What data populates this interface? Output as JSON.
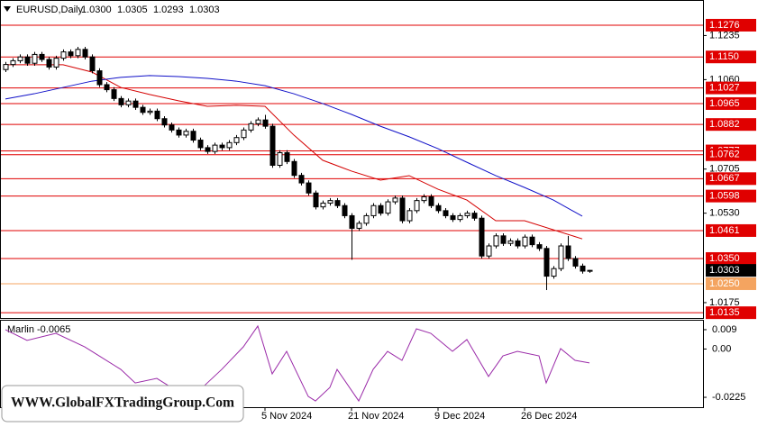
{
  "header": {
    "symbol": "EURUSD,Daily",
    "quote": [
      "1.0300",
      "1.0305",
      "1.0293",
      "1.0303"
    ]
  },
  "watermark": "WWW.GlobalFXTradingGroup.Com",
  "chart_data": [
    {
      "type": "candlestick",
      "categories": [
        null,
        null,
        null,
        null,
        null,
        null,
        null,
        null,
        null,
        null,
        null,
        null,
        null,
        null,
        null,
        null,
        null,
        null,
        null,
        null,
        null,
        null,
        null,
        null,
        null,
        null,
        null,
        null,
        null,
        null,
        null,
        null,
        null,
        null,
        null,
        null,
        "5 Nov 2024",
        null,
        null,
        null,
        null,
        null,
        null,
        null,
        null,
        null,
        null,
        null,
        "21 Nov 2024",
        null,
        null,
        null,
        null,
        null,
        null,
        null,
        null,
        null,
        null,
        null,
        "9 Dec 2024",
        null,
        null,
        null,
        null,
        null,
        null,
        null,
        null,
        null,
        null,
        null,
        "26 Dec 2024",
        null,
        null,
        null,
        null,
        null,
        null,
        null,
        null,
        null
      ],
      "open": [
        1.11,
        1.112,
        1.1135,
        1.115,
        1.1125,
        1.116,
        1.114,
        1.111,
        1.1145,
        1.117,
        1.1155,
        1.118,
        1.115,
        1.1095,
        1.104,
        1.102,
        1.0985,
        1.096,
        1.0975,
        1.095,
        1.093,
        1.0935,
        1.0905,
        1.088,
        1.086,
        1.084,
        1.0855,
        1.082,
        1.079,
        1.0775,
        1.08,
        1.079,
        1.081,
        1.083,
        1.086,
        1.0885,
        1.09,
        1.0875,
        1.072,
        1.077,
        1.0735,
        1.068,
        1.065,
        1.061,
        1.0555,
        1.057,
        1.058,
        1.056,
        1.052,
        1.047,
        1.049,
        1.052,
        1.056,
        1.053,
        1.0575,
        1.059,
        1.05,
        1.054,
        1.058,
        1.0595,
        1.056,
        1.054,
        1.052,
        1.0505,
        1.052,
        1.053,
        1.051,
        1.036,
        1.04,
        1.044,
        1.041,
        1.042,
        1.04,
        1.0435,
        1.0405,
        1.039,
        1.028,
        1.031,
        1.04,
        1.035,
        1.032,
        1.03
      ],
      "high": [
        1.113,
        1.1145,
        1.116,
        1.116,
        1.117,
        1.117,
        1.115,
        1.1155,
        1.118,
        1.118,
        1.119,
        1.119,
        1.116,
        1.1105,
        1.105,
        1.103,
        1.0995,
        1.0985,
        1.0985,
        1.096,
        1.0945,
        1.0945,
        1.0915,
        1.089,
        1.087,
        1.0865,
        1.0865,
        1.083,
        1.08,
        1.081,
        1.081,
        1.082,
        1.084,
        1.087,
        1.0895,
        1.091,
        1.092,
        1.0885,
        1.078,
        1.078,
        1.0745,
        1.069,
        1.066,
        1.062,
        1.058,
        1.059,
        1.059,
        1.057,
        1.053,
        1.05,
        1.053,
        1.057,
        1.057,
        1.0585,
        1.06,
        1.06,
        1.055,
        1.059,
        1.0605,
        1.0605,
        1.057,
        1.055,
        1.053,
        1.053,
        1.054,
        1.054,
        1.052,
        1.041,
        1.045,
        1.045,
        1.043,
        1.043,
        1.0445,
        1.0445,
        1.0415,
        1.04,
        1.032,
        1.041,
        1.044,
        1.036,
        1.033,
        1.0305
      ],
      "low": [
        1.109,
        1.111,
        1.1125,
        1.1115,
        1.1115,
        1.113,
        1.11,
        1.11,
        1.1135,
        1.1145,
        1.1145,
        1.114,
        1.1085,
        1.103,
        1.101,
        1.0975,
        1.095,
        1.095,
        1.094,
        1.092,
        1.092,
        1.0895,
        1.087,
        1.085,
        1.083,
        1.083,
        1.081,
        1.078,
        1.0765,
        1.0765,
        1.078,
        1.078,
        1.08,
        1.082,
        1.085,
        1.0875,
        1.0865,
        1.071,
        1.071,
        1.0725,
        1.067,
        1.064,
        1.06,
        1.0545,
        1.0545,
        1.056,
        1.055,
        1.051,
        1.0345,
        1.046,
        1.048,
        1.051,
        1.052,
        1.052,
        1.0565,
        1.049,
        1.049,
        1.053,
        1.057,
        1.055,
        1.053,
        1.051,
        1.0495,
        1.0495,
        1.051,
        1.05,
        1.035,
        1.035,
        1.039,
        1.04,
        1.04,
        1.039,
        1.039,
        1.0395,
        1.038,
        1.0225,
        1.027,
        1.03,
        1.034,
        1.031,
        1.029,
        1.0293
      ],
      "close": [
        1.112,
        1.1135,
        1.115,
        1.1125,
        1.116,
        1.114,
        1.111,
        1.1145,
        1.117,
        1.1155,
        1.118,
        1.115,
        1.1095,
        1.104,
        1.102,
        1.0985,
        1.096,
        1.0975,
        1.095,
        1.093,
        1.0935,
        1.0905,
        1.088,
        1.086,
        1.084,
        1.0855,
        1.082,
        1.079,
        1.0775,
        1.08,
        1.079,
        1.081,
        1.083,
        1.086,
        1.0885,
        1.09,
        1.0875,
        1.072,
        1.077,
        1.0735,
        1.068,
        1.065,
        1.061,
        1.0555,
        1.057,
        1.058,
        1.056,
        1.052,
        1.047,
        1.049,
        1.052,
        1.056,
        1.053,
        1.0575,
        1.059,
        1.05,
        1.054,
        1.058,
        1.0595,
        1.056,
        1.054,
        1.052,
        1.0505,
        1.052,
        1.053,
        1.051,
        1.036,
        1.04,
        1.044,
        1.041,
        1.042,
        1.04,
        1.0435,
        1.0405,
        1.039,
        1.028,
        1.031,
        1.04,
        1.035,
        1.032,
        1.03,
        1.0303
      ],
      "lines": [
        {
          "color": "#d40000",
          "x": [
            0,
            4,
            8,
            12,
            16,
            20,
            24,
            28,
            32,
            36,
            40,
            44,
            48,
            52,
            56,
            60,
            64,
            68,
            72,
            76,
            80
          ],
          "values": [
            1.1119,
            1.1119,
            1.1119,
            1.109,
            1.1029,
            1.1001,
            1.0976,
            1.0954,
            1.0958,
            1.0954,
            1.084,
            1.074,
            1.0697,
            1.0661,
            1.0679,
            1.0625,
            1.0582,
            1.05,
            1.05,
            1.0464,
            1.0428
          ]
        },
        {
          "color": "#1010c8",
          "x": [
            0,
            4,
            8,
            12,
            16,
            20,
            24,
            28,
            32,
            36,
            40,
            44,
            48,
            52,
            56,
            60,
            64,
            68,
            72,
            76,
            80
          ],
          "values": [
            1.0983,
            1.1004,
            1.1029,
            1.1054,
            1.1069,
            1.1076,
            1.1072,
            1.1065,
            1.1054,
            1.1036,
            1.1004,
            1.0965,
            1.0922,
            1.0875,
            1.0833,
            1.0786,
            1.0732,
            1.0679,
            1.0632,
            1.0582,
            1.0518
          ]
        }
      ],
      "levels": [
        {
          "value": 1.1276,
          "color": "#e00000"
        },
        {
          "value": 1.115,
          "label": "1.1150",
          "color": "#e00000"
        },
        {
          "value": 1.1027,
          "color": "#e00000"
        },
        {
          "value": 1.0965,
          "color": "#e00000"
        },
        {
          "value": 1.0882,
          "color": "#e00000"
        },
        {
          "value": 1.0777,
          "color": "#e00000"
        },
        {
          "value": 1.0762,
          "color": "#e00000"
        },
        {
          "value": 1.0667,
          "color": "#e00000"
        },
        {
          "value": 1.0598,
          "color": "#e00000"
        },
        {
          "value": 1.0461,
          "color": "#e00000"
        },
        {
          "value": 1.035,
          "label": "1.0350",
          "color": "#e00000"
        },
        {
          "value": 1.025,
          "label": "1.0250",
          "color": "#f4a460"
        },
        {
          "value": 1.0135,
          "color": "#e00000"
        }
      ],
      "current_price": 1.0303,
      "ylim": [
        1.0114,
        1.1376
      ],
      "yticks": [
        1.1235,
        {
          "value": 1.106,
          "label": "1.1060"
        },
        1.0705,
        {
          "value": 1.053,
          "label": "1.0530"
        },
        1.0175
      ]
    },
    {
      "type": "line",
      "title": "Marlin -0.0065",
      "color": "#9a2aa8",
      "x": [
        0,
        3,
        7,
        11,
        13,
        16,
        18,
        21,
        23,
        26,
        28,
        30,
        33,
        35,
        37,
        39,
        42,
        43,
        45,
        46,
        49,
        51,
        53,
        55,
        57,
        59,
        62,
        64,
        67,
        69,
        71,
        74,
        75,
        77,
        79,
        81
      ],
      "values": [
        0.009,
        0.004,
        0.0073,
        0.001,
        -0.0032,
        -0.0095,
        -0.0158,
        -0.0137,
        -0.0179,
        -0.0221,
        -0.0158,
        -0.0095,
        0.001,
        0.0107,
        -0.0116,
        -0.0011,
        -0.0221,
        -0.0242,
        -0.0179,
        -0.0095,
        -0.0242,
        -0.0095,
        -0.0011,
        -0.0053,
        0.0094,
        0.0073,
        -0.0011,
        0.0044,
        -0.0128,
        -0.0032,
        -0.0011,
        -0.0032,
        -0.0158,
        0.0002,
        -0.0053,
        -0.0065
      ],
      "ylim": [
        -0.0271,
        0.0136
      ],
      "yticks": [
        0.009,
        {
          "value": 0,
          "label": "0.00"
        },
        -0.0225
      ]
    }
  ]
}
